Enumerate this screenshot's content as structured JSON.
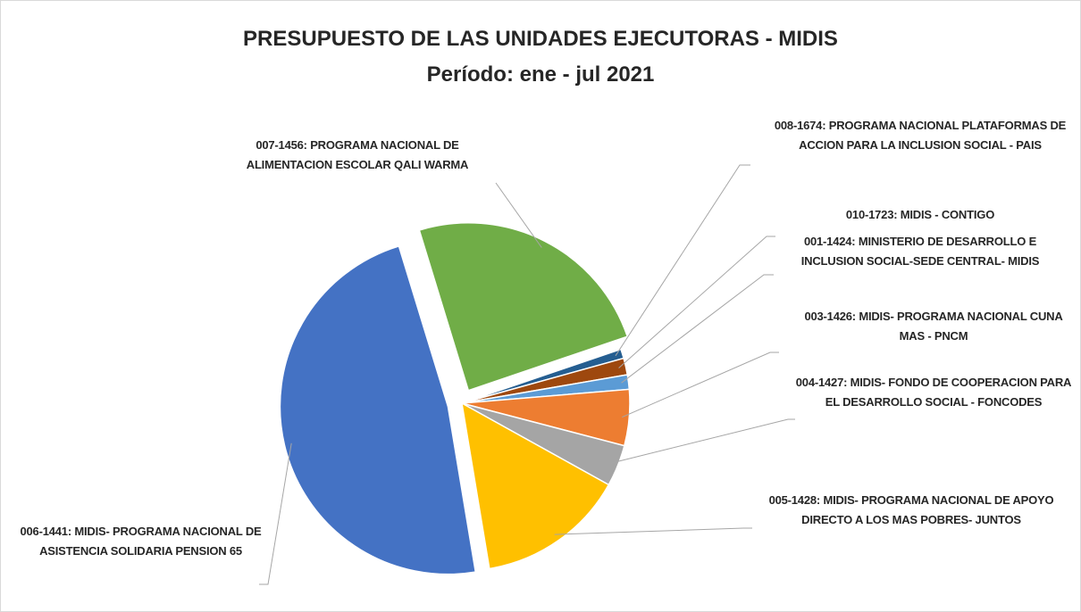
{
  "chart_data": {
    "type": "pie",
    "title": "PRESUPUESTO DE LAS UNIDADES EJECUTORAS - MIDIS",
    "subtitle": "Período: ene - jul 2021",
    "categories": [
      "007-1456: PROGRAMA NACIONAL DE ALIMENTACION ESCOLAR QALI WARMA",
      "008-1674: PROGRAMA NACIONAL PLATAFORMAS DE ACCION PARA LA INCLUSION SOCIAL - PAIS",
      "010-1723: MIDIS - CONTIGO",
      "001-1424: MINISTERIO DE DESARROLLO E INCLUSION SOCIAL-SEDE CENTRAL- MIDIS",
      "003-1426: MIDIS- PROGRAMA NACIONAL CUNA MAS - PNCM",
      "004-1427: MIDIS- FONDO DE COOPERACION PARA EL DESARROLLO SOCIAL - FONCODES",
      "005-1428: MIDIS- PROGRAMA NACIONAL DE APOYO DIRECTO A LOS MAS POBRES- JUNTOS",
      "006-1441: MIDIS- PROGRAMA NACIONAL DE ASISTENCIA SOLIDARIA PENSION 65"
    ],
    "values": [
      24.5,
      0.9,
      1.6,
      1.4,
      5.4,
      4.0,
      14.3,
      47.9
    ],
    "colors": [
      "#70ad47",
      "#255e91",
      "#9e480e",
      "#5b9bd5",
      "#ed7d31",
      "#a5a5a5",
      "#ffc000",
      "#4472c4"
    ]
  }
}
